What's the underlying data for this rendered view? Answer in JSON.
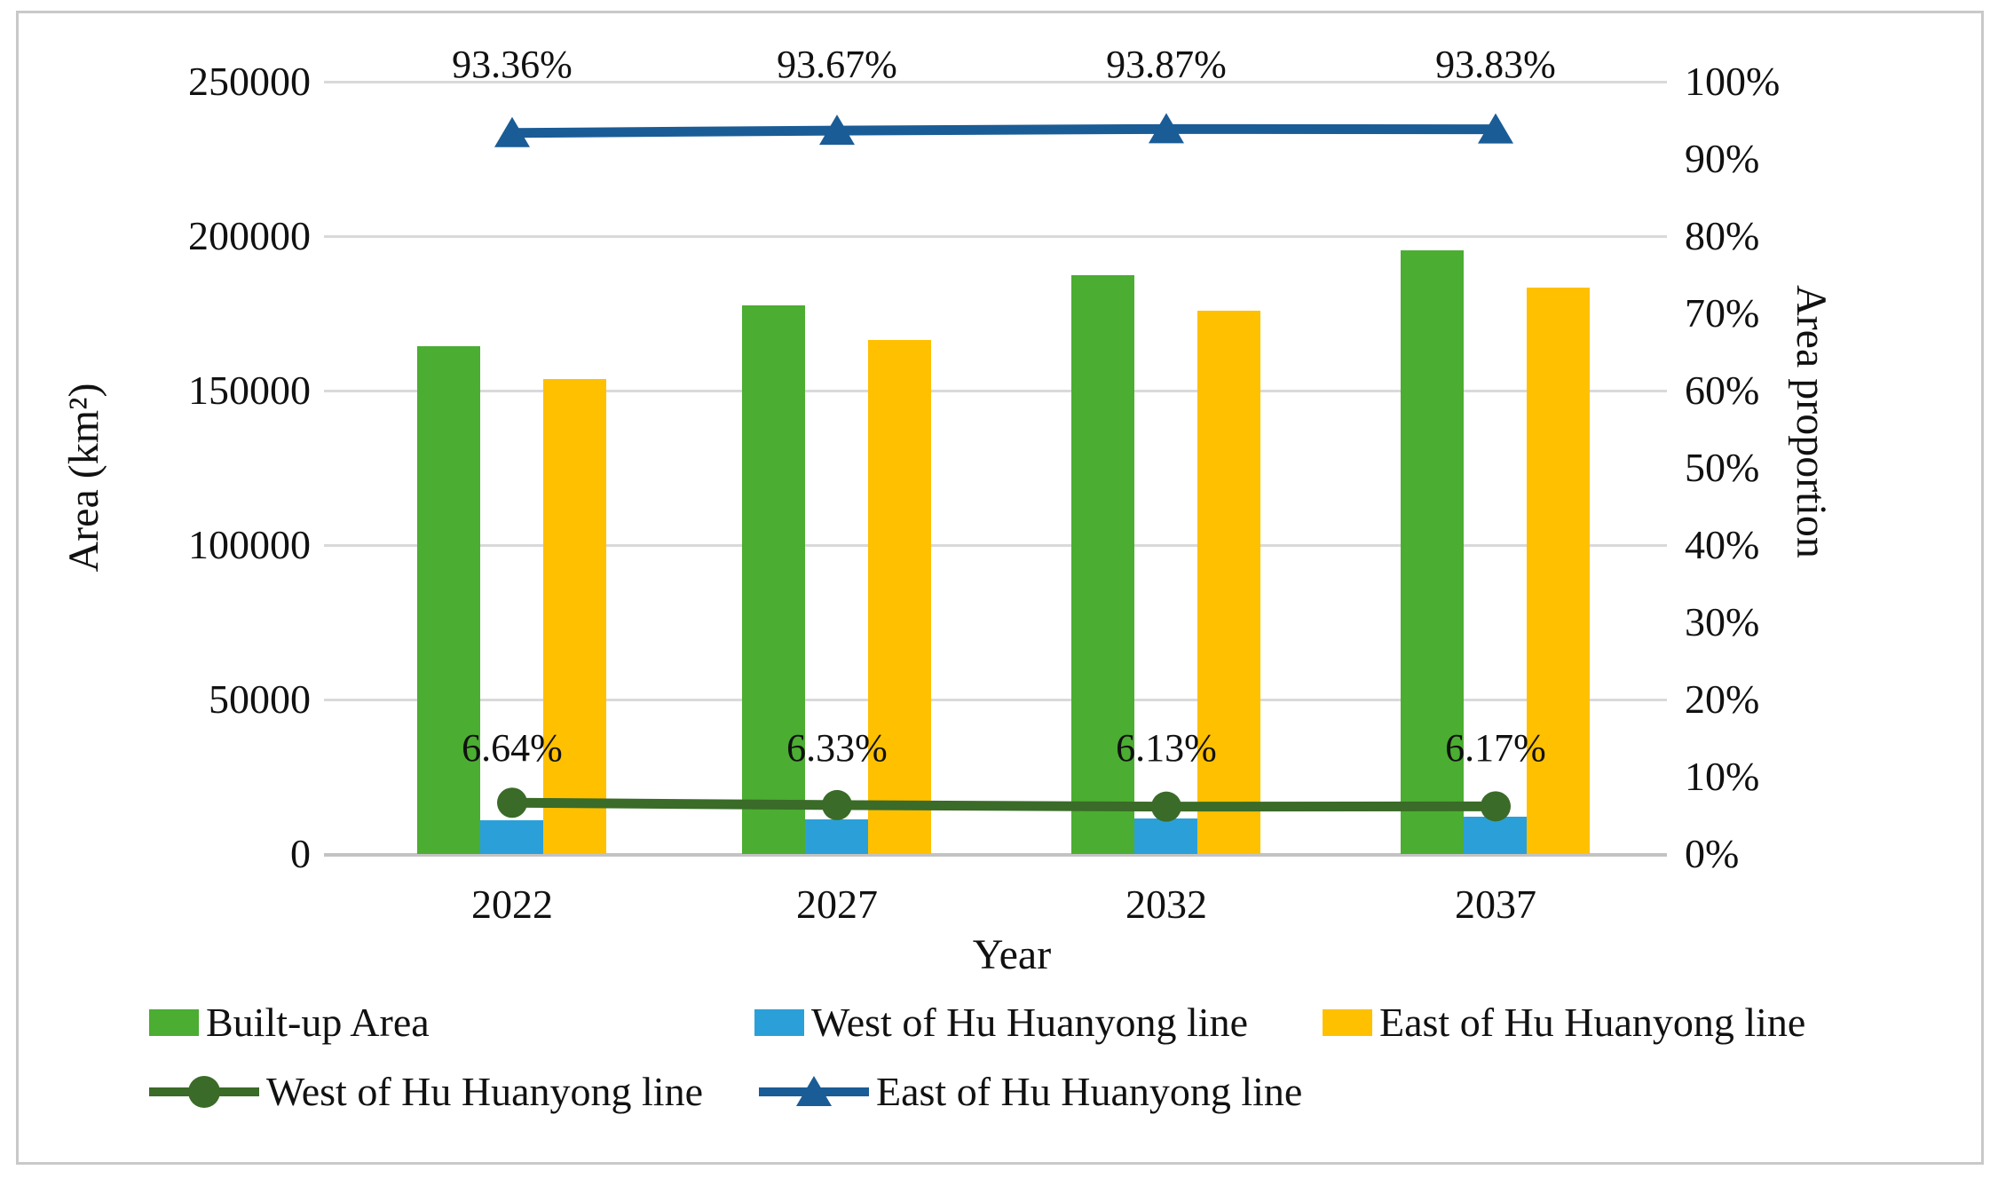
{
  "chart_data": {
    "type": "combo-bar-line",
    "categories": [
      "2022",
      "2027",
      "2032",
      "2037"
    ],
    "bar_series": [
      {
        "name": "Built-up Area",
        "color": "#4BAD31",
        "values": [
          164500,
          177500,
          187500,
          195500
        ]
      },
      {
        "name": "West of Hu Huanyong line",
        "color": "#2BA0D8",
        "values": [
          10900,
          11200,
          11500,
          12100
        ]
      },
      {
        "name": "East of Hu Huanyong line",
        "color": "#FFC000",
        "values": [
          153600,
          166300,
          176000,
          183400
        ]
      }
    ],
    "line_series": [
      {
        "name": "West of Hu Huanyong line",
        "color": "#3A6B28",
        "marker": "circle",
        "axis": "right",
        "values": [
          6.64,
          6.33,
          6.13,
          6.17
        ],
        "labels": [
          "6.64%",
          "6.33%",
          "6.13%",
          "6.17%"
        ]
      },
      {
        "name": "East of Hu Huanyong line",
        "color": "#1A5C96",
        "marker": "triangle",
        "axis": "right",
        "values": [
          93.36,
          93.67,
          93.87,
          93.83
        ],
        "labels": [
          "93.36%",
          "93.67%",
          "93.87%",
          "93.83%"
        ]
      }
    ],
    "left_axis": {
      "title": "Area (km²)",
      "min": 0,
      "max": 250000,
      "step": 50000,
      "tick_labels": [
        "0",
        "50000",
        "100000",
        "150000",
        "200000",
        "250000"
      ]
    },
    "right_axis": {
      "title": "Area proportion",
      "min": 0,
      "max": 100,
      "step": 10,
      "tick_labels": [
        "0%",
        "10%",
        "20%",
        "30%",
        "40%",
        "50%",
        "60%",
        "70%",
        "80%",
        "90%",
        "100%"
      ]
    },
    "x_axis": {
      "title": "Year"
    },
    "grid": {
      "horizontal": true,
      "interval_left_units": 50000
    },
    "legend_position": "bottom",
    "legend": {
      "row1": [
        {
          "label": "Built-up Area",
          "symbol": "bar",
          "color": "#4BAD31"
        },
        {
          "label": "West of Hu Huanyong line",
          "symbol": "bar",
          "color": "#2BA0D8"
        },
        {
          "label": "East of Hu Huanyong line",
          "symbol": "bar",
          "color": "#FFC000"
        }
      ],
      "row2": [
        {
          "label": "West of Hu Huanyong line",
          "symbol": "line-circle",
          "color": "#3A6B28"
        },
        {
          "label": "East of Hu Huanyong line",
          "symbol": "line-triangle",
          "color": "#1A5C96"
        }
      ]
    }
  }
}
